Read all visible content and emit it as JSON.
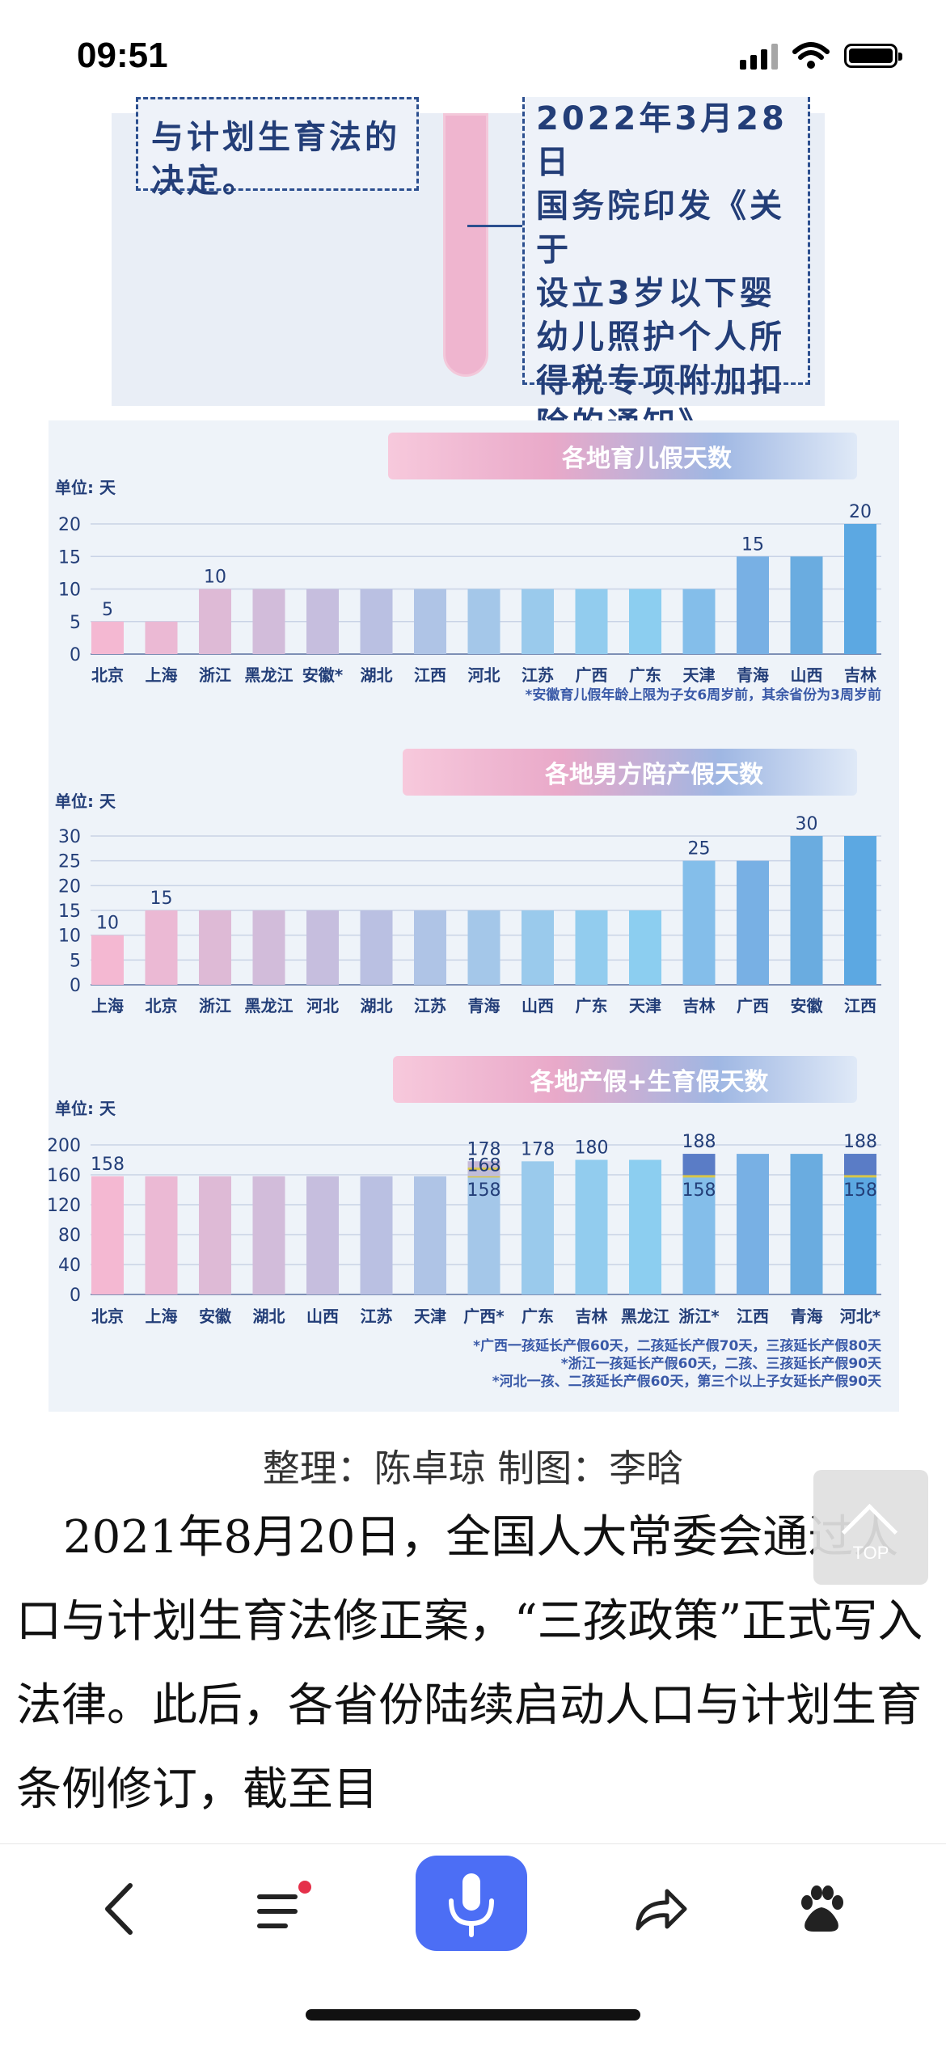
{
  "status_bar": {
    "time": "09:51"
  },
  "timeline": {
    "left_text": [
      "与计划生育法的",
      "决定。"
    ],
    "right_text": [
      "2022年3月28日",
      "国务院印发《关于",
      "设立3岁以下婴",
      "幼儿照护个人所",
      "得税专项附加扣",
      "除的通知》。"
    ]
  },
  "chart_data": [
    {
      "type": "bar",
      "title": "各地育儿假天数",
      "ylabel": "单位: 天",
      "ylim": [
        0,
        20
      ],
      "yticks": [
        0,
        5,
        10,
        15,
        20
      ],
      "categories": [
        "北京",
        "上海",
        "浙江",
        "黑龙江",
        "安徽*",
        "湖北",
        "江西",
        "河北",
        "江苏",
        "广西",
        "广东",
        "天津",
        "青海",
        "山西",
        "吉林"
      ],
      "values": [
        5,
        5,
        10,
        10,
        10,
        10,
        10,
        10,
        10,
        10,
        10,
        10,
        15,
        15,
        20
      ],
      "data_labels": {
        "0": "5",
        "2": "10",
        "12": "15",
        "14": "20"
      },
      "note": [
        "*安徽育儿假年龄上限为子女6周岁前，其余省份为3周岁前"
      ]
    },
    {
      "type": "bar",
      "title": "各地男方陪产假天数",
      "ylabel": "单位: 天",
      "ylim": [
        0,
        30
      ],
      "yticks": [
        0,
        5,
        10,
        15,
        20,
        25,
        30
      ],
      "categories": [
        "上海",
        "北京",
        "浙江",
        "黑龙江",
        "河北",
        "湖北",
        "江苏",
        "青海",
        "山西",
        "广东",
        "天津",
        "吉林",
        "广西",
        "安徽",
        "江西"
      ],
      "values": [
        10,
        15,
        15,
        15,
        15,
        15,
        15,
        15,
        15,
        15,
        15,
        25,
        25,
        30,
        30
      ],
      "data_labels": {
        "0": "10",
        "1": "15",
        "11": "25",
        "13": "30"
      },
      "note": []
    },
    {
      "type": "bar",
      "title": "各地产假+生育假天数",
      "ylabel": "单位: 天",
      "ylim": [
        0,
        200
      ],
      "yticks": [
        0,
        40,
        80,
        120,
        160,
        200
      ],
      "categories": [
        "北京",
        "上海",
        "安徽",
        "湖北",
        "山西",
        "江苏",
        "天津",
        "广西*",
        "广东",
        "吉林",
        "黑龙江",
        "浙江*",
        "江西",
        "青海",
        "河北*"
      ],
      "values": [
        158,
        158,
        158,
        158,
        158,
        158,
        158,
        178,
        178,
        180,
        180,
        188,
        188,
        188,
        188
      ],
      "stacks": {
        "7": [
          158,
          168,
          178
        ],
        "11": [
          158,
          188
        ],
        "14": [
          158,
          188
        ]
      },
      "data_labels": {
        "0": "158",
        "7": "178",
        "8": "178",
        "9": "180",
        "11": "188",
        "14": "188"
      },
      "stack_labels": {
        "7": [
          "158",
          "168"
        ],
        "11": [
          "158"
        ],
        "14": [
          "158"
        ]
      },
      "note": [
        "*广西一孩延长产假60天，二孩延长产假70天，三孩延长产假80天",
        "*浙江一孩延长产假60天，二孩、三孩延长产假90天",
        "*河北一孩、二孩延长产假60天，第三个以上子女延长产假90天"
      ]
    }
  ],
  "credit": "整理：陈卓琼 制图：李晗",
  "article": {
    "paragraph": "2021年8月20日，全国人大常委会通过人口与计划生育法修正案，“三孩政策”正式写入法律。此后，各省份陆续启动人口与计划生育条例修订，截至目"
  },
  "top_button": {
    "label": "TOP"
  },
  "colors": {
    "accent": "#4c6ef5",
    "notification_dot": "#e5304a"
  }
}
